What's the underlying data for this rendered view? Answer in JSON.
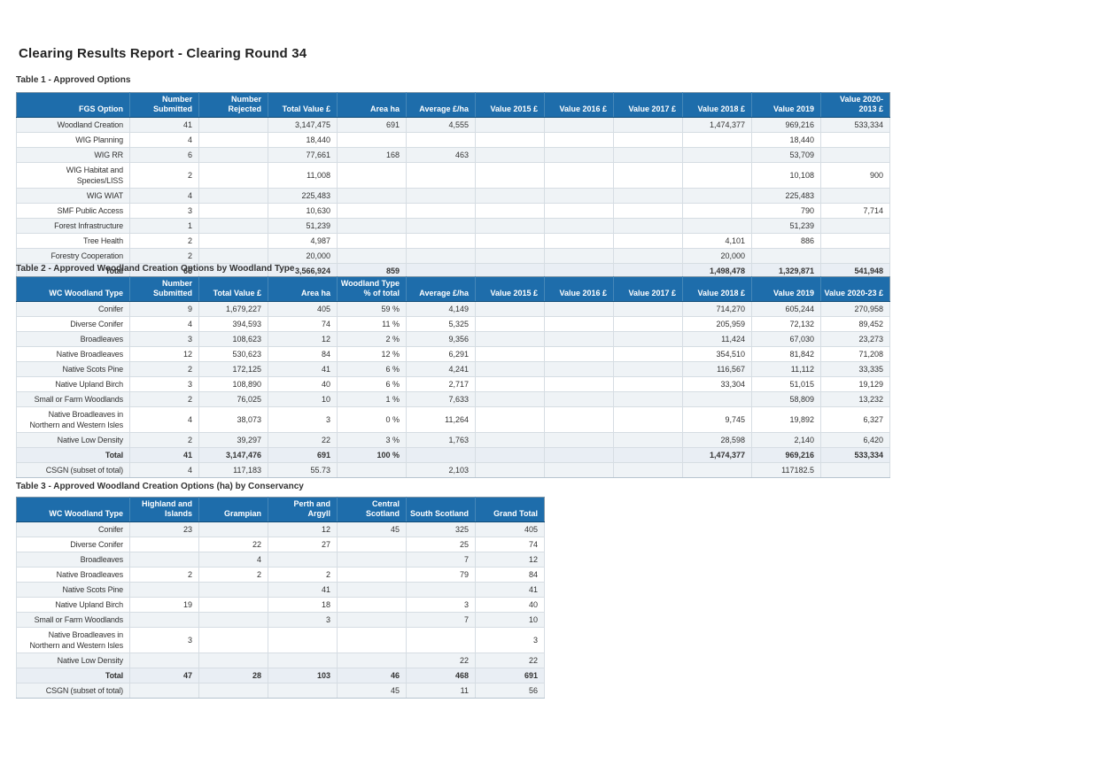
{
  "report_title": "Clearing Results Report - Clearing Round 34",
  "theme": {
    "header_bg": "#1e6dab",
    "header_text": "#ffffff",
    "stripe": "#eff3f6",
    "total_bg": "#e9eef4",
    "total_border": "#93adc0",
    "grid_border": "#d6dde3",
    "cell_text": "#333333"
  },
  "tables": [
    {
      "label": "Table 1 - Approved Options",
      "columns": [
        "FGS Option",
        "Number Submitted",
        "Number Rejected",
        "Total Value £",
        "Area ha",
        "Average £/ha",
        "Value 2015 £",
        "Value 2016 £",
        "Value 2017 £",
        "Value 2018 £",
        "Value 2019",
        "Value 2020-2013 £"
      ],
      "rows": [
        {
          "type": "data",
          "cells": [
            "Woodland Creation",
            "41",
            "",
            "3,147,475",
            "691",
            "4,555",
            "",
            "",
            "",
            "1,474,377",
            "969,216",
            "533,334"
          ]
        },
        {
          "type": "data",
          "cells": [
            "WIG Planning",
            "4",
            "",
            "18,440",
            "",
            "",
            "",
            "",
            "",
            "",
            "18,440",
            ""
          ]
        },
        {
          "type": "data",
          "cells": [
            "WIG RR",
            "6",
            "",
            "77,661",
            "168",
            "463",
            "",
            "",
            "",
            "",
            "53,709",
            ""
          ]
        },
        {
          "type": "data",
          "cells": [
            "WIG Habitat and Species/LISS",
            "2",
            "",
            "11,008",
            "",
            "",
            "",
            "",
            "",
            "",
            "10,108",
            "900"
          ]
        },
        {
          "type": "data",
          "cells": [
            "WIG WIAT",
            "4",
            "",
            "225,483",
            "",
            "",
            "",
            "",
            "",
            "",
            "225,483",
            ""
          ]
        },
        {
          "type": "data",
          "cells": [
            "SMF Public Access",
            "3",
            "",
            "10,630",
            "",
            "",
            "",
            "",
            "",
            "",
            "790",
            "7,714"
          ]
        },
        {
          "type": "data",
          "cells": [
            "Forest Infrastructure",
            "1",
            "",
            "51,239",
            "",
            "",
            "",
            "",
            "",
            "",
            "51,239",
            ""
          ]
        },
        {
          "type": "data",
          "cells": [
            "Tree Health",
            "2",
            "",
            "4,987",
            "",
            "",
            "",
            "",
            "",
            "4,101",
            "886",
            ""
          ]
        },
        {
          "type": "data",
          "cells": [
            "Forestry Cooperation",
            "2",
            "",
            "20,000",
            "",
            "",
            "",
            "",
            "",
            "20,000",
            "",
            ""
          ]
        },
        {
          "type": "total",
          "cells": [
            "Total",
            "66",
            "",
            "3,566,924",
            "859",
            "",
            "",
            "",
            "",
            "1,498,478",
            "1,329,871",
            "541,948"
          ]
        }
      ]
    },
    {
      "label": "Table 2 - Approved Woodland Creation Options by Woodland Type",
      "columns": [
        "WC Woodland Type",
        "Number Submitted",
        "Total Value £",
        "Area ha",
        "Woodland Type % of total",
        "Average £/ha",
        "Value 2015 £",
        "Value 2016 £",
        "Value 2017 £",
        "Value 2018 £",
        "Value 2019",
        "Value 2020-23 £"
      ],
      "rows": [
        {
          "type": "data",
          "cells": [
            "Conifer",
            "9",
            "1,679,227",
            "405",
            "59 %",
            "4,149",
            "",
            "",
            "",
            "714,270",
            "605,244",
            "270,958"
          ]
        },
        {
          "type": "data",
          "cells": [
            "Diverse Conifer",
            "4",
            "394,593",
            "74",
            "11 %",
            "5,325",
            "",
            "",
            "",
            "205,959",
            "72,132",
            "89,452"
          ]
        },
        {
          "type": "data",
          "cells": [
            "Broadleaves",
            "3",
            "108,623",
            "12",
            "2 %",
            "9,356",
            "",
            "",
            "",
            "11,424",
            "67,030",
            "23,273"
          ]
        },
        {
          "type": "data",
          "cells": [
            "Native Broadleaves",
            "12",
            "530,623",
            "84",
            "12 %",
            "6,291",
            "",
            "",
            "",
            "354,510",
            "81,842",
            "71,208"
          ]
        },
        {
          "type": "data",
          "cells": [
            "Native Scots Pine",
            "2",
            "172,125",
            "41",
            "6 %",
            "4,241",
            "",
            "",
            "",
            "116,567",
            "11,112",
            "33,335"
          ]
        },
        {
          "type": "data",
          "cells": [
            "Native Upland Birch",
            "3",
            "108,890",
            "40",
            "6 %",
            "2,717",
            "",
            "",
            "",
            "33,304",
            "51,015",
            "19,129"
          ]
        },
        {
          "type": "data",
          "cells": [
            "Small or Farm Woodlands",
            "2",
            "76,025",
            "10",
            "1 %",
            "7,633",
            "",
            "",
            "",
            "",
            "58,809",
            "13,232"
          ]
        },
        {
          "type": "data",
          "cells": [
            "Native Broadleaves in Northern and Western Isles",
            "4",
            "38,073",
            "3",
            "0 %",
            "11,264",
            "",
            "",
            "",
            "9,745",
            "19,892",
            "6,327"
          ]
        },
        {
          "type": "data",
          "cells": [
            "Native Low Density",
            "2",
            "39,297",
            "22",
            "3 %",
            "1,763",
            "",
            "",
            "",
            "28,598",
            "2,140",
            "6,420"
          ]
        },
        {
          "type": "total",
          "cells": [
            "Total",
            "41",
            "3,147,476",
            "691",
            "100 %",
            "",
            "",
            "",
            "",
            "1,474,377",
            "969,216",
            "533,334"
          ]
        },
        {
          "type": "subset",
          "cells": [
            "CSGN (subset of total)",
            "4",
            "117,183",
            "55.73",
            "",
            "2,103",
            "",
            "",
            "",
            "",
            "117182.5",
            ""
          ]
        }
      ]
    },
    {
      "label": "Table 3 - Approved Woodland Creation Options (ha) by Conservancy",
      "columns": [
        "WC Woodland Type",
        "Highland and Islands",
        "Grampian",
        "Perth and Argyll",
        "Central Scotland",
        "South Scotland",
        "Grand Total"
      ],
      "rows": [
        {
          "type": "data",
          "cells": [
            "Conifer",
            "23",
            "",
            "12",
            "45",
            "325",
            "405"
          ]
        },
        {
          "type": "data",
          "cells": [
            "Diverse Conifer",
            "",
            "22",
            "27",
            "",
            "25",
            "74"
          ]
        },
        {
          "type": "data",
          "cells": [
            "Broadleaves",
            "",
            "4",
            "",
            "",
            "7",
            "12"
          ]
        },
        {
          "type": "data",
          "cells": [
            "Native Broadleaves",
            "2",
            "2",
            "2",
            "",
            "79",
            "84"
          ]
        },
        {
          "type": "data",
          "cells": [
            "Native Scots Pine",
            "",
            "",
            "41",
            "",
            "",
            "41"
          ]
        },
        {
          "type": "data",
          "cells": [
            "Native Upland Birch",
            "19",
            "",
            "18",
            "",
            "3",
            "40"
          ]
        },
        {
          "type": "data",
          "cells": [
            "Small or Farm Woodlands",
            "",
            "",
            "3",
            "",
            "7",
            "10"
          ]
        },
        {
          "type": "data",
          "cells": [
            "Native Broadleaves in Northern and Western Isles",
            "3",
            "",
            "",
            "",
            "",
            "3"
          ]
        },
        {
          "type": "data",
          "cells": [
            "Native Low Density",
            "",
            "",
            "",
            "",
            "22",
            "22"
          ]
        },
        {
          "type": "total",
          "cells": [
            "Total",
            "47",
            "28",
            "103",
            "46",
            "468",
            "691"
          ]
        },
        {
          "type": "subset",
          "cells": [
            "CSGN (subset of total)",
            "",
            "",
            "",
            "45",
            "11",
            "56"
          ]
        }
      ]
    }
  ]
}
